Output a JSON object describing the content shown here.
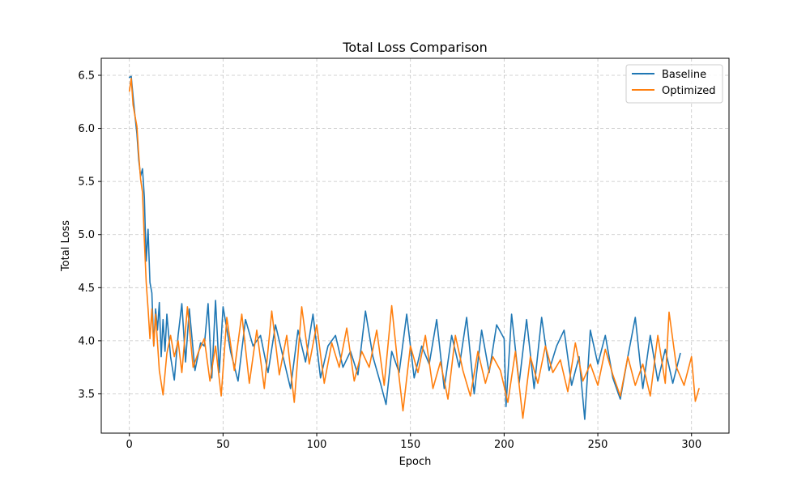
{
  "chart_data": {
    "type": "line",
    "title": "Total Loss Comparison",
    "xlabel": "Epoch",
    "ylabel": "Total Loss",
    "xlim": [
      -15,
      320
    ],
    "ylim": [
      3.13,
      6.66
    ],
    "xticks": [
      0,
      50,
      100,
      150,
      200,
      250,
      300
    ],
    "yticks": [
      3.5,
      4.0,
      4.5,
      5.0,
      5.5,
      6.0,
      6.5
    ],
    "grid": true,
    "legend_position": "upper right",
    "series": [
      {
        "name": "Baseline",
        "color": "#1f77b4",
        "x": [
          0,
          1,
          2,
          3,
          4,
          5,
          6,
          7,
          8,
          9,
          10,
          11,
          12,
          13,
          14,
          15,
          16,
          17,
          18,
          19,
          20,
          22,
          24,
          26,
          28,
          30,
          32,
          35,
          38,
          40,
          42,
          44,
          46,
          48,
          50,
          54,
          58,
          62,
          66,
          70,
          74,
          78,
          82,
          86,
          90,
          94,
          98,
          102,
          106,
          110,
          114,
          118,
          122,
          126,
          130,
          134,
          137,
          140,
          144,
          148,
          152,
          156,
          160,
          164,
          168,
          172,
          176,
          180,
          184,
          188,
          192,
          196,
          200,
          201,
          204,
          208,
          212,
          216,
          220,
          224,
          228,
          232,
          236,
          240,
          243,
          246,
          250,
          254,
          258,
          262,
          266,
          270,
          274,
          278,
          282,
          286,
          290,
          294
        ],
        "values": [
          6.48,
          6.49,
          6.3,
          6.12,
          5.95,
          5.7,
          5.55,
          5.62,
          5.35,
          4.75,
          5.05,
          4.55,
          4.45,
          3.95,
          4.3,
          4.1,
          4.36,
          3.85,
          4.2,
          3.9,
          4.25,
          3.85,
          3.63,
          4.05,
          4.35,
          3.8,
          4.3,
          3.72,
          3.98,
          3.95,
          4.35,
          3.65,
          4.38,
          3.7,
          4.32,
          3.9,
          3.62,
          4.2,
          3.95,
          4.05,
          3.7,
          4.15,
          3.85,
          3.55,
          4.1,
          3.8,
          4.25,
          3.65,
          3.95,
          4.05,
          3.75,
          3.9,
          3.68,
          4.28,
          3.85,
          3.6,
          3.4,
          3.9,
          3.7,
          4.25,
          3.65,
          3.95,
          3.78,
          4.2,
          3.55,
          4.05,
          3.75,
          4.22,
          3.5,
          4.1,
          3.7,
          4.15,
          4.02,
          3.38,
          4.25,
          3.6,
          4.2,
          3.55,
          4.22,
          3.72,
          3.95,
          4.1,
          3.58,
          3.85,
          3.26,
          4.1,
          3.78,
          4.05,
          3.65,
          3.45,
          3.85,
          4.22,
          3.55,
          4.05,
          3.62,
          3.92,
          3.6,
          3.88
        ]
      },
      {
        "name": "Optimized",
        "color": "#ff7f0e",
        "x": [
          0,
          1,
          2,
          3,
          4,
          5,
          6,
          7,
          8,
          9,
          10,
          11,
          12,
          13,
          14,
          16,
          18,
          20,
          22,
          24,
          26,
          28,
          31,
          34,
          37,
          40,
          43,
          46,
          49,
          52,
          56,
          60,
          64,
          68,
          72,
          76,
          80,
          84,
          88,
          92,
          96,
          100,
          104,
          108,
          112,
          116,
          120,
          124,
          128,
          132,
          136,
          140,
          144,
          146,
          150,
          154,
          158,
          162,
          166,
          170,
          174,
          178,
          182,
          186,
          190,
          194,
          198,
          202,
          206,
          210,
          214,
          218,
          222,
          226,
          230,
          234,
          238,
          242,
          246,
          250,
          254,
          258,
          262,
          266,
          270,
          274,
          278,
          282,
          286,
          288,
          292,
          296,
          300,
          302,
          304
        ],
        "values": [
          6.35,
          6.47,
          6.22,
          6.12,
          6.02,
          5.75,
          5.52,
          5.4,
          4.95,
          4.55,
          4.3,
          4.02,
          4.3,
          3.95,
          4.25,
          3.72,
          3.49,
          3.88,
          4.05,
          3.85,
          4.0,
          3.7,
          4.32,
          3.75,
          3.9,
          4.02,
          3.62,
          3.95,
          3.48,
          4.22,
          3.72,
          4.25,
          3.6,
          4.1,
          3.55,
          4.28,
          3.68,
          4.05,
          3.42,
          4.32,
          3.78,
          4.15,
          3.6,
          3.98,
          3.75,
          4.12,
          3.62,
          3.9,
          3.75,
          4.1,
          3.58,
          4.33,
          3.65,
          3.34,
          3.95,
          3.7,
          4.05,
          3.55,
          3.8,
          3.45,
          4.05,
          3.72,
          3.48,
          3.9,
          3.6,
          3.85,
          3.72,
          3.42,
          3.9,
          3.27,
          3.85,
          3.6,
          3.95,
          3.7,
          3.82,
          3.52,
          3.98,
          3.62,
          3.78,
          3.58,
          3.92,
          3.68,
          3.48,
          3.85,
          3.58,
          3.78,
          3.48,
          4.05,
          3.6,
          4.27,
          3.75,
          3.58,
          3.85,
          3.43,
          3.55
        ]
      }
    ]
  }
}
